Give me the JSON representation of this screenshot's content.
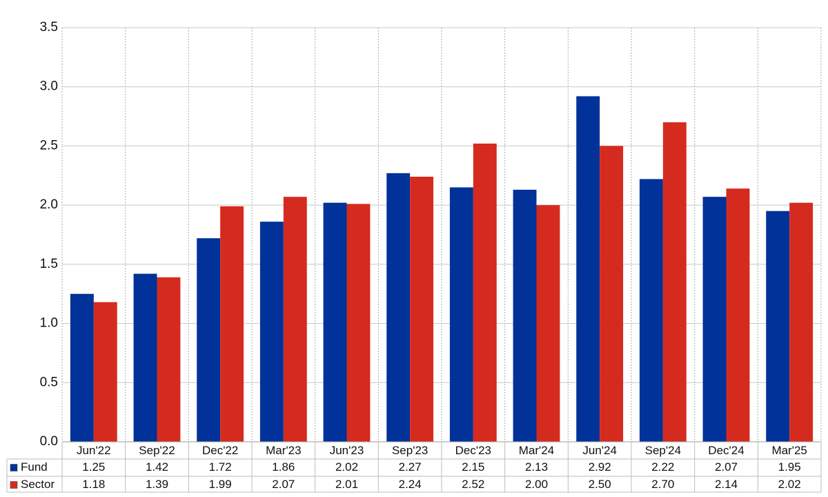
{
  "chart_data": {
    "type": "bar",
    "categories": [
      "Jun'22",
      "Sep'22",
      "Dec'22",
      "Mar'23",
      "Jun'23",
      "Sep'23",
      "Dec'23",
      "Mar'24",
      "Jun'24",
      "Sep'24",
      "Dec'24",
      "Mar'25"
    ],
    "series": [
      {
        "name": "Fund",
        "color": "#003299",
        "values": [
          1.25,
          1.42,
          1.72,
          1.86,
          2.02,
          2.27,
          2.15,
          2.13,
          2.92,
          2.22,
          2.07,
          1.95
        ],
        "value_labels": [
          "1.25",
          "1.42",
          "1.72",
          "1.86",
          "2.02",
          "2.27",
          "2.15",
          "2.13",
          "2.92",
          "2.22",
          "2.07",
          "1.95"
        ]
      },
      {
        "name": "Sector",
        "color": "#d52b1e",
        "values": [
          1.18,
          1.39,
          1.99,
          2.07,
          2.01,
          2.24,
          2.52,
          2,
          2.5,
          2.7,
          2.14,
          2.02
        ],
        "value_labels": [
          "1.18",
          "1.39",
          "1.99",
          "2.07",
          "2.01",
          "2.24",
          "2.52",
          "2.00",
          "2.50",
          "2.70",
          "2.14",
          "2.02"
        ]
      }
    ],
    "ylim": [
      0,
      3.5
    ],
    "yticks": [
      {
        "value": 0,
        "label": "0.0"
      },
      0.5,
      {
        "value": 1,
        "label": "1.0"
      },
      1.5,
      {
        "value": 2,
        "label": "2.0"
      },
      2.5,
      {
        "value": 3,
        "label": "3.0"
      },
      3.5
    ],
    "grid": true
  }
}
